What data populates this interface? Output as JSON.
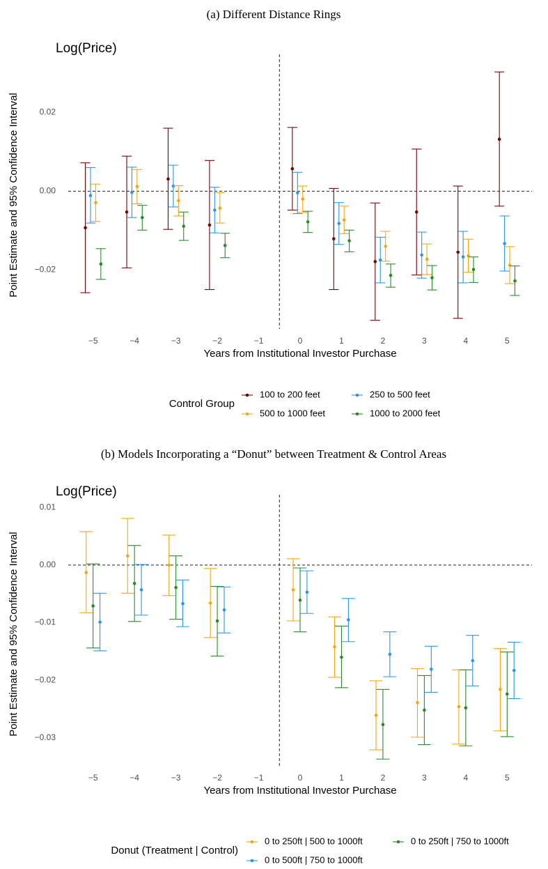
{
  "chart_data": [
    {
      "type": "errorbar",
      "title": "(a) Different Distance Rings",
      "subtitle": "Log(Price)",
      "x_label": "Years from Institutional Investor Purchase",
      "y_label": "Point Estimate and 95% Confidence Interval",
      "legend_title": "Control Group",
      "x": [
        -5,
        -4,
        -3,
        -2,
        -1,
        0,
        1,
        2,
        3,
        4,
        5
      ],
      "xlim": [
        -5.6,
        5.6
      ],
      "xticks": [
        {
          "value": -5,
          "label": "−5"
        },
        {
          "value": -4,
          "label": "−4"
        },
        {
          "value": -3,
          "label": "−3"
        },
        {
          "value": -2,
          "label": "−2"
        },
        {
          "value": -1,
          "label": "−1"
        },
        0,
        1,
        2,
        3,
        4,
        5
      ],
      "ylim": [
        -0.035,
        0.033
      ],
      "yticks": [
        {
          "value": -0.02,
          "label": "−0.02"
        },
        {
          "value": 0,
          "label": "0.00"
        },
        {
          "value": 0.02,
          "label": "0.02"
        }
      ],
      "hline": 0,
      "vline": -0.5,
      "series": [
        {
          "name": "100 to 200 feet",
          "color": "#7a0000",
          "values": [
            -0.0093,
            -0.0053,
            0.0031,
            -0.0086,
            null,
            0.0057,
            -0.0121,
            -0.0179,
            -0.0053,
            -0.0155,
            0.0132
          ],
          "lower": [
            -0.0258,
            -0.0195,
            -0.0097,
            -0.025,
            null,
            -0.0048,
            -0.025,
            -0.0328,
            -0.0213,
            -0.0323,
            -0.0038
          ],
          "upper": [
            0.0072,
            0.0089,
            0.016,
            0.0078,
            null,
            0.0162,
            0.0007,
            -0.003,
            0.0107,
            0.0013,
            0.0303
          ]
        },
        {
          "name": "250 to 500 feet",
          "color": "#2b95e9",
          "values": [
            -0.0011,
            -0.0003,
            0.0013,
            -0.0048,
            null,
            -0.0004,
            -0.0082,
            -0.0175,
            -0.0162,
            -0.0167,
            -0.0133
          ],
          "lower": [
            -0.0081,
            -0.0067,
            -0.004,
            -0.0106,
            null,
            -0.0057,
            -0.0135,
            -0.0233,
            -0.0221,
            -0.0233,
            -0.0203
          ],
          "upper": [
            0.006,
            0.0061,
            0.0066,
            0.001,
            null,
            0.0048,
            -0.0029,
            -0.0117,
            -0.0104,
            -0.0102,
            -0.0063
          ]
        },
        {
          "name": "500 to 1000 feet",
          "color": "#f5a70f",
          "values": [
            -0.0029,
            0.0012,
            -0.0024,
            -0.0043,
            null,
            -0.002,
            -0.0073,
            -0.014,
            -0.0173,
            -0.0164,
            -0.0188
          ],
          "lower": [
            -0.0077,
            -0.0032,
            -0.0063,
            -0.0081,
            null,
            -0.0054,
            -0.0108,
            -0.0178,
            -0.0212,
            -0.0206,
            -0.0235
          ],
          "upper": [
            0.0018,
            0.0055,
            0.0014,
            -0.0004,
            null,
            0.0013,
            -0.0038,
            -0.0102,
            -0.0134,
            -0.0122,
            -0.0141
          ]
        },
        {
          "name": "1000 to 2000 feet",
          "color": "#2a8a2a",
          "values": [
            -0.0185,
            -0.0067,
            -0.0089,
            -0.0138,
            null,
            -0.0078,
            -0.0126,
            -0.0214,
            -0.022,
            -0.0199,
            -0.0228
          ],
          "lower": [
            -0.0224,
            -0.0099,
            -0.0125,
            -0.0169,
            null,
            -0.0105,
            -0.0154,
            -0.0244,
            -0.0251,
            -0.0232,
            -0.0265
          ],
          "upper": [
            -0.0146,
            -0.0036,
            -0.0053,
            -0.0107,
            null,
            -0.0051,
            -0.0099,
            -0.0185,
            -0.0189,
            -0.0167,
            -0.019
          ]
        }
      ]
    },
    {
      "type": "errorbar",
      "title": "(b) Models Incorporating a “Donut” between Treatment & Control Areas",
      "subtitle": "Log(Price)",
      "x_label": "Years from Institutional Investor Purchase",
      "y_label": "Point Estimate and 95% Confidence Interval",
      "legend_title": "Donut (Treatment | Control)",
      "x": [
        -5,
        -4,
        -3,
        -2,
        -1,
        0,
        1,
        2,
        3,
        4,
        5
      ],
      "xlim": [
        -5.6,
        5.6
      ],
      "xticks": [
        {
          "value": -5,
          "label": "−5"
        },
        {
          "value": -4,
          "label": "−4"
        },
        {
          "value": -3,
          "label": "−3"
        },
        {
          "value": -2,
          "label": "−2"
        },
        {
          "value": -1,
          "label": "−1"
        },
        0,
        1,
        2,
        3,
        4,
        5
      ],
      "ylim": [
        -0.035,
        0.011
      ],
      "yticks": [
        {
          "value": -0.03,
          "label": "−0.03"
        },
        {
          "value": -0.02,
          "label": "−0.02"
        },
        {
          "value": -0.01,
          "label": "−0.01"
        },
        {
          "value": 0,
          "label": "0.00"
        },
        {
          "value": 0.01,
          "label": "0.01"
        }
      ],
      "hline": 0,
      "vline": -0.5,
      "series": [
        {
          "name": "0 to 250ft | 500 to 1000ft",
          "color": "#f5a70f",
          "values": [
            -0.0013,
            0.0016,
            0.0,
            -0.0066,
            null,
            -0.0043,
            -0.0142,
            -0.0261,
            -0.0239,
            -0.0246,
            -0.0216
          ],
          "lower": [
            -0.0083,
            -0.0049,
            -0.0053,
            -0.0126,
            null,
            -0.0097,
            -0.0195,
            -0.0321,
            -0.0299,
            -0.0311,
            -0.0288
          ],
          "upper": [
            0.0058,
            0.0081,
            0.0052,
            -0.0006,
            null,
            0.0011,
            -0.009,
            -0.0201,
            -0.018,
            -0.0182,
            -0.0145
          ]
        },
        {
          "name": "0 to 250ft | 750 to 1000ft",
          "color": "#2a8a2a",
          "values": [
            -0.0071,
            -0.0032,
            -0.0039,
            -0.0097,
            null,
            -0.0061,
            -0.016,
            -0.0277,
            -0.0252,
            -0.0248,
            -0.0224
          ],
          "lower": [
            -0.0144,
            -0.0098,
            -0.0094,
            -0.0158,
            null,
            -0.0116,
            -0.0213,
            -0.0337,
            -0.0312,
            -0.0314,
            -0.0298
          ],
          "upper": [
            0.0002,
            0.0034,
            0.0016,
            -0.0037,
            null,
            -0.0005,
            -0.0106,
            -0.0216,
            -0.0192,
            -0.0182,
            -0.0151
          ]
        },
        {
          "name": "0 to 500ft | 750 to 1000ft",
          "color": "#2b95e9",
          "values": [
            -0.0099,
            -0.0043,
            -0.0067,
            -0.0078,
            null,
            -0.0047,
            -0.0095,
            -0.0155,
            -0.0181,
            -0.0166,
            -0.0183
          ],
          "lower": [
            -0.0149,
            -0.0087,
            -0.0107,
            -0.0118,
            null,
            -0.0084,
            -0.0133,
            -0.0194,
            -0.0221,
            -0.021,
            -0.0232
          ],
          "upper": [
            -0.0049,
            0.0001,
            -0.0026,
            -0.0038,
            null,
            -0.001,
            -0.0058,
            -0.0116,
            -0.0141,
            -0.0122,
            -0.0134
          ]
        }
      ]
    }
  ]
}
